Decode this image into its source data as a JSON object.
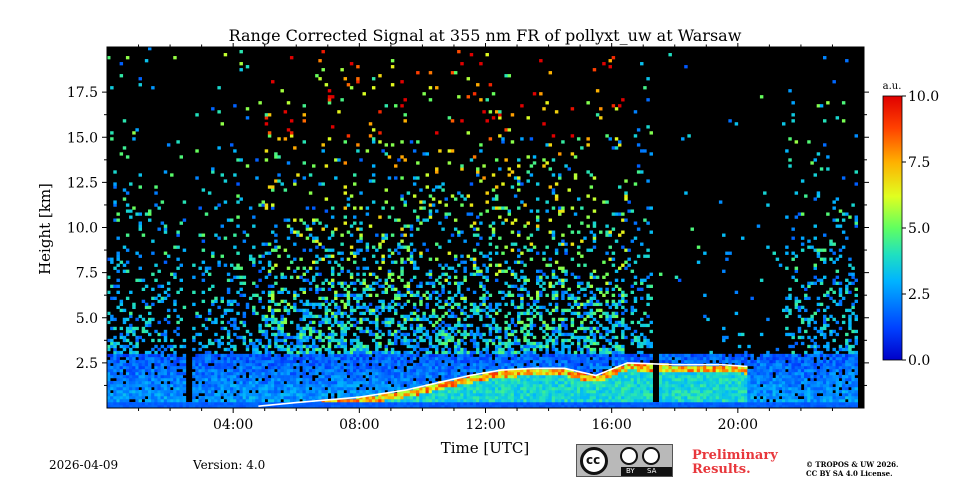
{
  "chart_data": {
    "type": "heatmap",
    "title": "Range Corrected Signal at 355 nm FR of pollyxt_uw at Warsaw",
    "xlabel": "Time [UTC]",
    "ylabel": "Height [km]",
    "xlim_hours": [
      0,
      24
    ],
    "ylim_km": [
      0,
      20
    ],
    "x_ticks": [
      {
        "value": 4,
        "label": "04:00"
      },
      {
        "value": 8,
        "label": "08:00"
      },
      {
        "value": 12,
        "label": "12:00"
      },
      {
        "value": 16,
        "label": "16:00"
      },
      {
        "value": 20,
        "label": "20:00"
      }
    ],
    "y_ticks": [
      {
        "value": 2.5,
        "label": "2.5"
      },
      {
        "value": 5.0,
        "label": "5.0"
      },
      {
        "value": 7.5,
        "label": "7.5"
      },
      {
        "value": 10.0,
        "label": "10.0"
      },
      {
        "value": 12.5,
        "label": "12.5"
      },
      {
        "value": 15.0,
        "label": "15.0"
      },
      {
        "value": 17.5,
        "label": "17.5"
      }
    ],
    "colorbar": {
      "unit": "a.u.",
      "range": [
        0,
        10
      ],
      "colormap": "jet",
      "ticks": [
        {
          "value": 0.0,
          "label": "0.0"
        },
        {
          "value": 2.5,
          "label": "2.5"
        },
        {
          "value": 5.0,
          "label": "5.0"
        },
        {
          "value": 7.5,
          "label": "7.5"
        },
        {
          "value": 10.0,
          "label": "10.0"
        }
      ]
    },
    "data_end_hour": 23.8,
    "features": {
      "boundary_layer_top_km": [
        [
          4.8,
          0.1
        ],
        [
          6,
          0.3
        ],
        [
          8,
          0.6
        ],
        [
          9.5,
          1.0
        ],
        [
          10.5,
          1.4
        ],
        [
          11.5,
          1.8
        ],
        [
          12.5,
          2.1
        ],
        [
          13.5,
          2.2
        ],
        [
          14.5,
          2.2
        ],
        [
          15.5,
          1.8
        ],
        [
          16.5,
          2.5
        ],
        [
          18,
          2.4
        ],
        [
          19.5,
          2.4
        ],
        [
          20.3,
          2.3
        ]
      ],
      "data_gaps_hours": [
        [
          2.5,
          2.6
        ],
        [
          17.3,
          17.4
        ]
      ],
      "clear_upper_period_hours": [
        17.4,
        21.5
      ]
    }
  },
  "footer": {
    "date": "2026-04-09",
    "version": "Version: 4.0",
    "preliminary_line1": "Preliminary",
    "preliminary_line2": "Results.",
    "copyright_line1": "© TROPOS & UW 2026.",
    "copyright_line2": "CC BY SA 4.0 License.",
    "license_badge": {
      "by": "BY",
      "sa": "SA",
      "cc": "cc"
    }
  },
  "colors": {
    "background": "#000000",
    "preliminary": "#e8373c"
  }
}
